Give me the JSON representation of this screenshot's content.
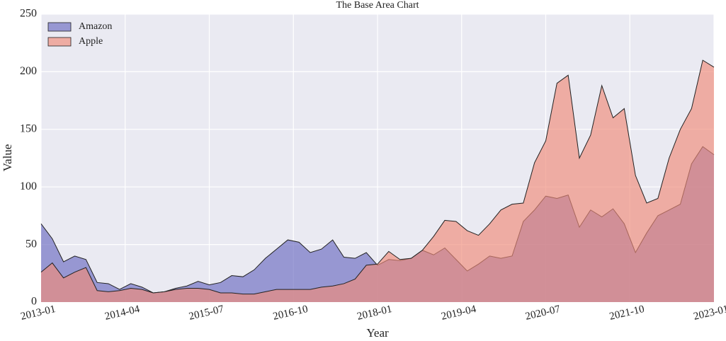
{
  "chart_data": {
    "type": "area",
    "title": "The Base Area Chart",
    "x_label": "Year",
    "y_label": "Value",
    "x": [
      "2013-01",
      "2013-03",
      "2013-05",
      "2013-07",
      "2013-09",
      "2013-11",
      "2014-01",
      "2014-03",
      "2014-05",
      "2014-07",
      "2014-09",
      "2014-11",
      "2015-01",
      "2015-03",
      "2015-05",
      "2015-07",
      "2015-09",
      "2015-11",
      "2016-01",
      "2016-03",
      "2016-05",
      "2016-07",
      "2016-09",
      "2016-11",
      "2017-01",
      "2017-03",
      "2017-05",
      "2017-07",
      "2017-09",
      "2017-11",
      "2018-01",
      "2018-03",
      "2018-05",
      "2018-07",
      "2018-09",
      "2018-11",
      "2019-01",
      "2019-03",
      "2019-05",
      "2019-07",
      "2019-09",
      "2019-11",
      "2020-01",
      "2020-03",
      "2020-05",
      "2020-07",
      "2020-09",
      "2020-11",
      "2021-01",
      "2021-03",
      "2021-05",
      "2021-07",
      "2021-09",
      "2021-11",
      "2022-01",
      "2022-03",
      "2022-05",
      "2022-07",
      "2022-09",
      "2022-11",
      "2023-01"
    ],
    "series": [
      {
        "name": "Amazon",
        "color": "#6a6ac0",
        "values": [
          68,
          55,
          35,
          40,
          37,
          17,
          16,
          11,
          16,
          13,
          8,
          9,
          12,
          14,
          18,
          15,
          17,
          23,
          22,
          28,
          38,
          46,
          54,
          52,
          43,
          46,
          54,
          39,
          38,
          43,
          32,
          37,
          36,
          38,
          45,
          41,
          47,
          37,
          27,
          33,
          40,
          38,
          40,
          70,
          80,
          92,
          90,
          93,
          65,
          80,
          74,
          81,
          68,
          43,
          60,
          75,
          80,
          85,
          120,
          135,
          128
        ]
      },
      {
        "name": "Apple",
        "color": "#f08a78",
        "values": [
          26,
          34,
          21,
          26,
          30,
          10,
          9,
          10,
          12,
          11,
          8,
          9,
          11,
          12,
          12,
          11,
          8,
          8,
          7,
          7,
          9,
          11,
          11,
          11,
          11,
          13,
          14,
          16,
          20,
          32,
          33,
          44,
          37,
          38,
          45,
          57,
          71,
          70,
          62,
          58,
          68,
          80,
          85,
          86,
          121,
          140,
          190,
          197,
          125,
          145,
          188,
          160,
          168,
          110,
          86,
          90,
          125,
          150,
          168,
          210,
          204
        ]
      }
    ],
    "xlim": [
      "2013-01",
      "2023-01"
    ],
    "xticks": [
      "2013-01",
      "2014-04",
      "2015-07",
      "2016-10",
      "2018-01",
      "2019-04",
      "2020-07",
      "2021-10",
      "2023-01"
    ],
    "ylim": [
      0,
      250
    ],
    "yticks": [
      0,
      50,
      100,
      150,
      200,
      250
    ],
    "grid": true,
    "legend": "upper left"
  }
}
